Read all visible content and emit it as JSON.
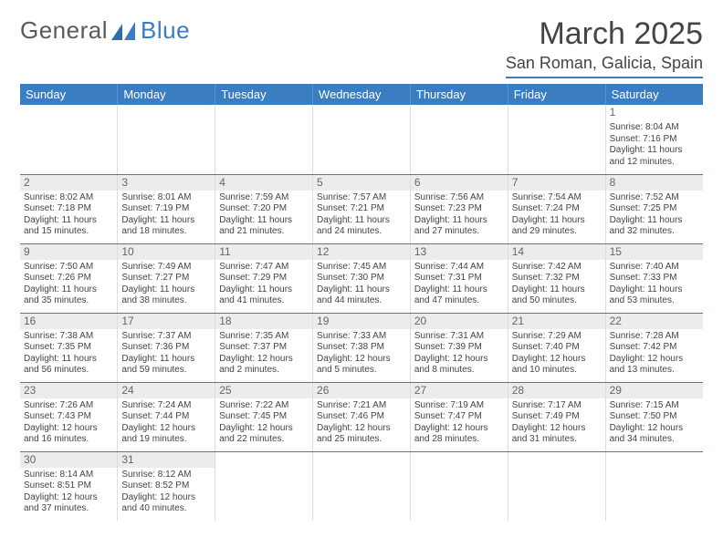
{
  "logo": {
    "textA": "General",
    "textB": "Blue"
  },
  "title": "March 2025",
  "location": "San Roman, Galicia, Spain",
  "colors": {
    "header_bg": "#3a7ec1",
    "header_text": "#ffffff",
    "rule": "#3a7ec1",
    "daynum_bg": "#ececec",
    "body_text": "#444444"
  },
  "weekdays": [
    "Sunday",
    "Monday",
    "Tuesday",
    "Wednesday",
    "Thursday",
    "Friday",
    "Saturday"
  ],
  "grid": {
    "first_weekday_index": 6,
    "num_days": 31
  },
  "days": {
    "1": {
      "sunrise": "8:04 AM",
      "sunset": "7:16 PM",
      "daylight": "11 hours and 12 minutes."
    },
    "2": {
      "sunrise": "8:02 AM",
      "sunset": "7:18 PM",
      "daylight": "11 hours and 15 minutes."
    },
    "3": {
      "sunrise": "8:01 AM",
      "sunset": "7:19 PM",
      "daylight": "11 hours and 18 minutes."
    },
    "4": {
      "sunrise": "7:59 AM",
      "sunset": "7:20 PM",
      "daylight": "11 hours and 21 minutes."
    },
    "5": {
      "sunrise": "7:57 AM",
      "sunset": "7:21 PM",
      "daylight": "11 hours and 24 minutes."
    },
    "6": {
      "sunrise": "7:56 AM",
      "sunset": "7:23 PM",
      "daylight": "11 hours and 27 minutes."
    },
    "7": {
      "sunrise": "7:54 AM",
      "sunset": "7:24 PM",
      "daylight": "11 hours and 29 minutes."
    },
    "8": {
      "sunrise": "7:52 AM",
      "sunset": "7:25 PM",
      "daylight": "11 hours and 32 minutes."
    },
    "9": {
      "sunrise": "7:50 AM",
      "sunset": "7:26 PM",
      "daylight": "11 hours and 35 minutes."
    },
    "10": {
      "sunrise": "7:49 AM",
      "sunset": "7:27 PM",
      "daylight": "11 hours and 38 minutes."
    },
    "11": {
      "sunrise": "7:47 AM",
      "sunset": "7:29 PM",
      "daylight": "11 hours and 41 minutes."
    },
    "12": {
      "sunrise": "7:45 AM",
      "sunset": "7:30 PM",
      "daylight": "11 hours and 44 minutes."
    },
    "13": {
      "sunrise": "7:44 AM",
      "sunset": "7:31 PM",
      "daylight": "11 hours and 47 minutes."
    },
    "14": {
      "sunrise": "7:42 AM",
      "sunset": "7:32 PM",
      "daylight": "11 hours and 50 minutes."
    },
    "15": {
      "sunrise": "7:40 AM",
      "sunset": "7:33 PM",
      "daylight": "11 hours and 53 minutes."
    },
    "16": {
      "sunrise": "7:38 AM",
      "sunset": "7:35 PM",
      "daylight": "11 hours and 56 minutes."
    },
    "17": {
      "sunrise": "7:37 AM",
      "sunset": "7:36 PM",
      "daylight": "11 hours and 59 minutes."
    },
    "18": {
      "sunrise": "7:35 AM",
      "sunset": "7:37 PM",
      "daylight": "12 hours and 2 minutes."
    },
    "19": {
      "sunrise": "7:33 AM",
      "sunset": "7:38 PM",
      "daylight": "12 hours and 5 minutes."
    },
    "20": {
      "sunrise": "7:31 AM",
      "sunset": "7:39 PM",
      "daylight": "12 hours and 8 minutes."
    },
    "21": {
      "sunrise": "7:29 AM",
      "sunset": "7:40 PM",
      "daylight": "12 hours and 10 minutes."
    },
    "22": {
      "sunrise": "7:28 AM",
      "sunset": "7:42 PM",
      "daylight": "12 hours and 13 minutes."
    },
    "23": {
      "sunrise": "7:26 AM",
      "sunset": "7:43 PM",
      "daylight": "12 hours and 16 minutes."
    },
    "24": {
      "sunrise": "7:24 AM",
      "sunset": "7:44 PM",
      "daylight": "12 hours and 19 minutes."
    },
    "25": {
      "sunrise": "7:22 AM",
      "sunset": "7:45 PM",
      "daylight": "12 hours and 22 minutes."
    },
    "26": {
      "sunrise": "7:21 AM",
      "sunset": "7:46 PM",
      "daylight": "12 hours and 25 minutes."
    },
    "27": {
      "sunrise": "7:19 AM",
      "sunset": "7:47 PM",
      "daylight": "12 hours and 28 minutes."
    },
    "28": {
      "sunrise": "7:17 AM",
      "sunset": "7:49 PM",
      "daylight": "12 hours and 31 minutes."
    },
    "29": {
      "sunrise": "7:15 AM",
      "sunset": "7:50 PM",
      "daylight": "12 hours and 34 minutes."
    },
    "30": {
      "sunrise": "8:14 AM",
      "sunset": "8:51 PM",
      "daylight": "12 hours and 37 minutes."
    },
    "31": {
      "sunrise": "8:12 AM",
      "sunset": "8:52 PM",
      "daylight": "12 hours and 40 minutes."
    }
  },
  "labels": {
    "sunrise_prefix": "Sunrise: ",
    "sunset_prefix": "Sunset: ",
    "daylight_prefix": "Daylight: "
  }
}
